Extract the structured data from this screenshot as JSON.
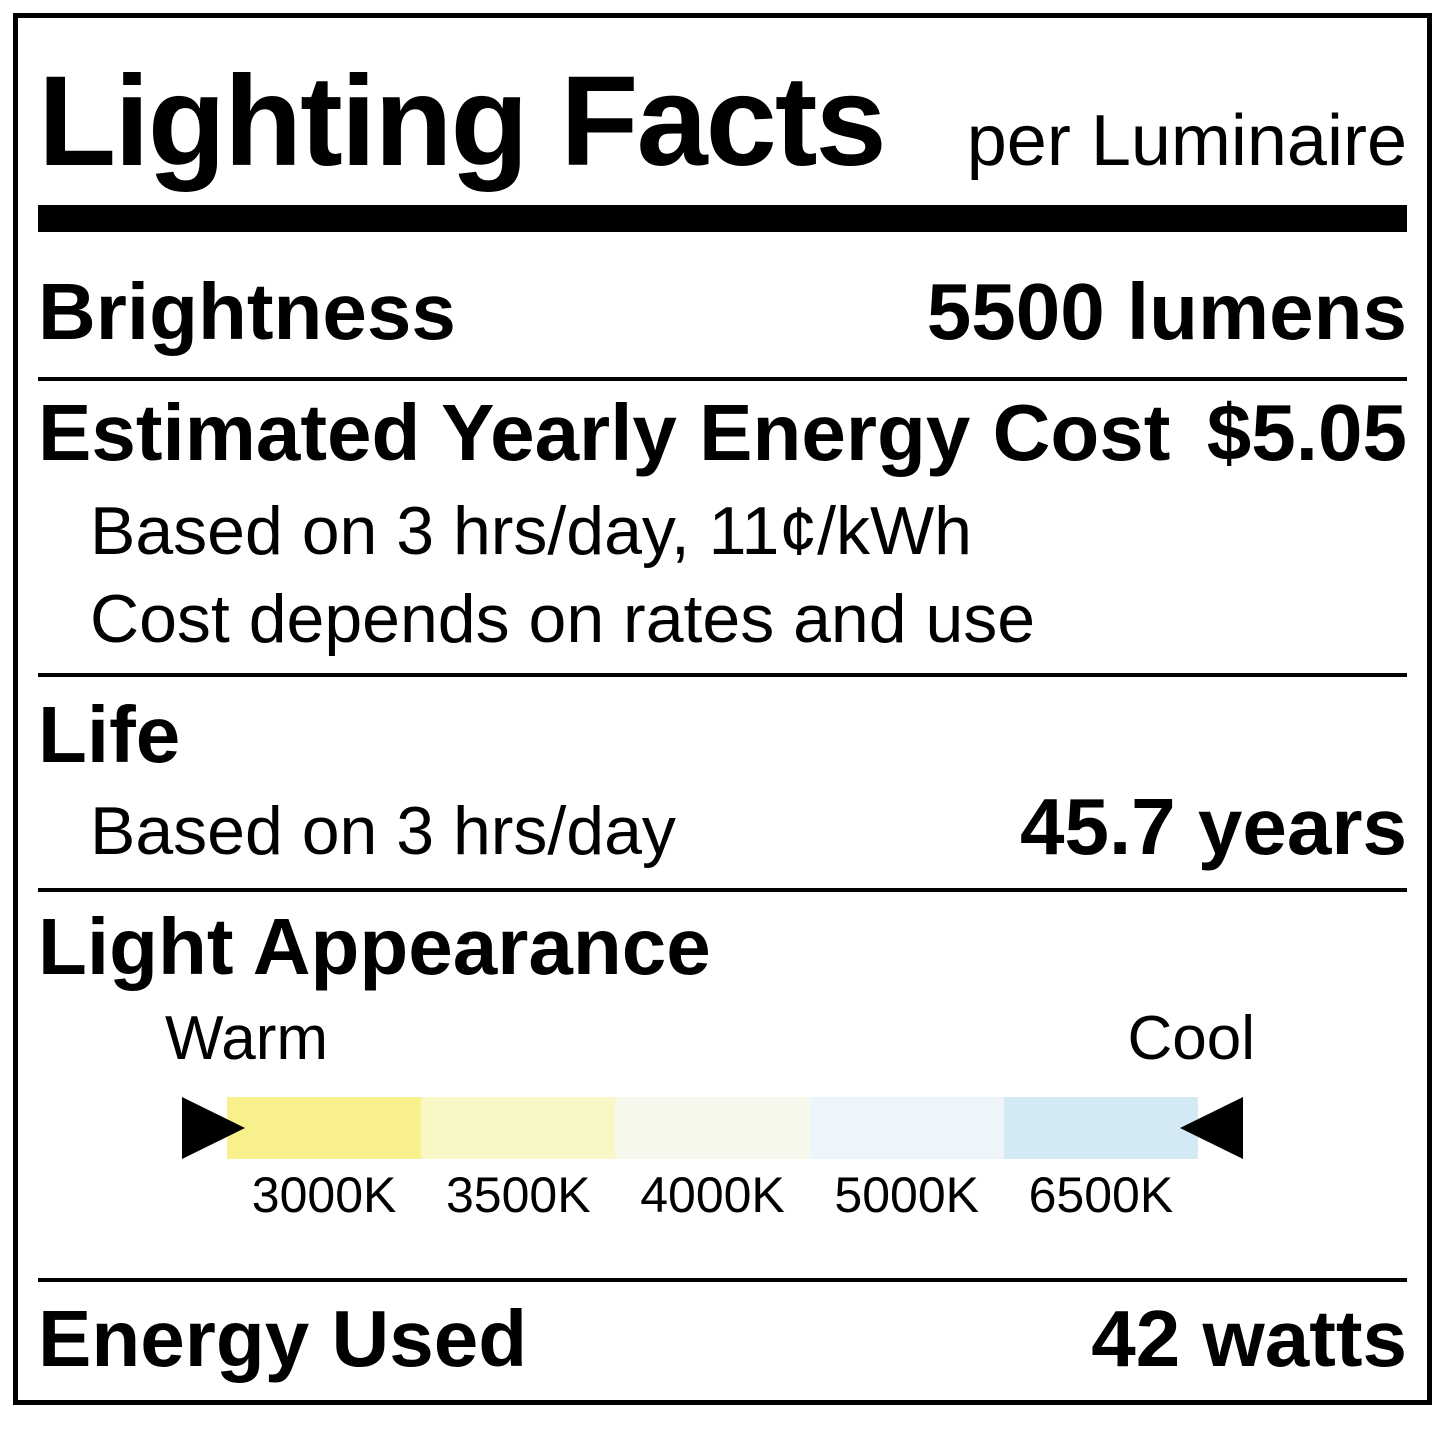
{
  "header": {
    "title": "Lighting Facts",
    "subtitle": "per Luminaire"
  },
  "sections": {
    "brightness": {
      "label": "Brightness",
      "value": "5500 lumens"
    },
    "energy_cost": {
      "label": "Estimated Yearly Energy Cost",
      "value": "$5.05",
      "note_basis": "Based on 3 hrs/day, 11¢/kWh",
      "note_rates": "Cost depends on rates and use"
    },
    "life": {
      "label": "Life",
      "note_basis": "Based on 3 hrs/day",
      "value": "45.7 years"
    },
    "light_appearance": {
      "label": "Light Appearance",
      "warm_label": "Warm",
      "cool_label": "Cool",
      "arrow_color": "#000000",
      "scale": [
        {
          "temp": "3000K",
          "color": "#F8F08A"
        },
        {
          "temp": "3500K",
          "color": "#FAF7C6"
        },
        {
          "temp": "4000K",
          "color": "#F5F8EB"
        },
        {
          "temp": "5000K",
          "color": "#EDF5FA"
        },
        {
          "temp": "6500K",
          "color": "#D3E9F3"
        }
      ]
    },
    "energy_used": {
      "label": "Energy Used",
      "value": "42 watts"
    }
  }
}
